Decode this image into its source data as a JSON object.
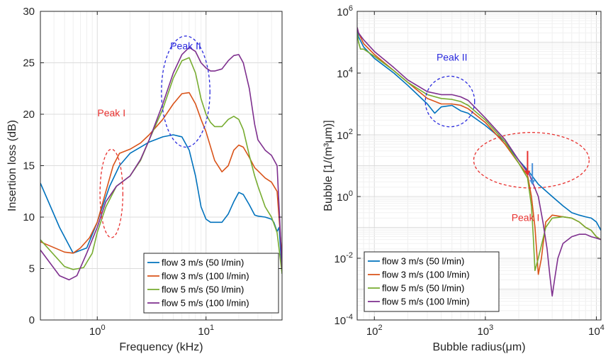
{
  "chart_data": [
    {
      "type": "line",
      "xscale": "log",
      "yscale": "linear",
      "xlabel": "Frequency (kHz)",
      "ylabel": "Insertion loss (dB)",
      "xlim": [
        0.3,
        50
      ],
      "ylim": [
        0,
        30
      ],
      "xticks": [
        {
          "v": 1,
          "mant": "10",
          "exp": "0"
        },
        {
          "v": 10,
          "mant": "10",
          "exp": "1"
        }
      ],
      "yticks": [
        0,
        5,
        10,
        15,
        20,
        25,
        30
      ],
      "grid": true,
      "legend_position": "bottom-right",
      "series": [
        {
          "name": "flow 3 m/s (50 l/min)",
          "color": "#0072BD",
          "x": [
            0.3,
            0.45,
            0.6,
            0.8,
            1.0,
            1.3,
            1.6,
            2.0,
            2.5,
            3,
            4,
            5,
            6,
            7,
            8,
            9,
            10,
            11,
            12,
            14,
            16,
            18,
            20,
            22,
            25,
            28,
            30,
            35,
            40,
            42,
            45,
            47,
            50
          ],
          "y": [
            13.3,
            9.0,
            6.5,
            7.0,
            9.5,
            13.0,
            15.0,
            16.2,
            16.8,
            17.3,
            17.8,
            18.0,
            17.8,
            16.5,
            14.0,
            11.0,
            9.8,
            9.5,
            9.5,
            9.5,
            10.3,
            11.5,
            12.4,
            12.2,
            11.2,
            10.2,
            10.1,
            10.0,
            9.8,
            9.5,
            8.6,
            9.0,
            4.5
          ]
        },
        {
          "name": "flow 3 m/s (100 l/min)",
          "color": "#D95319",
          "x": [
            0.3,
            0.5,
            0.6,
            0.7,
            0.85,
            1.0,
            1.2,
            1.4,
            1.6,
            2.0,
            2.5,
            3,
            4,
            5,
            6,
            7,
            8,
            9,
            10,
            12,
            14,
            16,
            18,
            20,
            22,
            25,
            28,
            30,
            35,
            40,
            45,
            50
          ],
          "y": [
            7.6,
            6.6,
            6.5,
            7.0,
            8.0,
            9.5,
            12.5,
            15.0,
            16.2,
            16.6,
            17.2,
            18.0,
            19.5,
            21.0,
            22.0,
            22.1,
            21.0,
            19.5,
            18.3,
            15.5,
            14.4,
            15.0,
            16.5,
            17.0,
            16.8,
            15.8,
            14.8,
            14.5,
            13.8,
            13.4,
            12.5,
            6.0
          ]
        },
        {
          "name": "flow 5 m/s (50 l/min)",
          "color": "#77AC30",
          "x": [
            0.3,
            0.5,
            0.6,
            0.75,
            0.9,
            1.0,
            1.2,
            1.5,
            2.0,
            2.5,
            3,
            4,
            5,
            6,
            7,
            8,
            9,
            10,
            11,
            12,
            14,
            16,
            18,
            20,
            22,
            25,
            28,
            30,
            35,
            40,
            45,
            50
          ],
          "y": [
            7.8,
            5.2,
            4.9,
            5.1,
            6.5,
            8.5,
            11.0,
            13.0,
            14.0,
            15.5,
            17.5,
            20.5,
            23.5,
            25.2,
            25.5,
            24.0,
            21.5,
            20.0,
            19.2,
            18.8,
            18.8,
            19.5,
            19.8,
            19.5,
            18.5,
            16.0,
            14.0,
            13.0,
            11.0,
            10.0,
            8.5,
            4.5
          ]
        },
        {
          "name": "flow 5 m/s (100 l/min)",
          "color": "#7E2F8E",
          "x": [
            0.3,
            0.45,
            0.55,
            0.65,
            0.8,
            1.0,
            1.2,
            1.5,
            2.0,
            2.5,
            3,
            4,
            5,
            6,
            7,
            8,
            9,
            10,
            11,
            12,
            14,
            16,
            18,
            20,
            22,
            25,
            28,
            30,
            35,
            40,
            45,
            50
          ],
          "y": [
            6.8,
            4.3,
            3.9,
            4.3,
            6.5,
            9.0,
            11.5,
            13.0,
            14.0,
            15.6,
            17.5,
            21.0,
            24.0,
            25.8,
            26.5,
            26.1,
            25.0,
            24.5,
            24.2,
            24.2,
            24.4,
            25.2,
            25.7,
            25.8,
            25.0,
            22.5,
            19.0,
            17.5,
            16.5,
            16.0,
            15.0,
            5.0
          ]
        }
      ],
      "annotations": [
        {
          "text": "Peak I",
          "color": "#e8312f",
          "x": 1.35,
          "y": 19.8,
          "ellipse": {
            "cx": 1.35,
            "cy": 12.3,
            "rx_dec": 0.105,
            "ry_val": 4.3
          }
        },
        {
          "text": "Peak II",
          "color": "#2b2bde",
          "x": 6.5,
          "y": 26.3,
          "ellipse": {
            "cx": 6.5,
            "cy": 22.2,
            "rx_dec": 0.223,
            "ry_val": 5.4
          }
        }
      ]
    },
    {
      "type": "line",
      "xscale": "log",
      "yscale": "log",
      "xlabel": "Bubble radius(μm)",
      "ylabel": "Bubble [1/(m³μm)]",
      "xlim": [
        70,
        11000
      ],
      "ylim": [
        0.0001,
        1000000
      ],
      "xticks": [
        {
          "v": 100,
          "mant": "10",
          "exp": "2"
        },
        {
          "v": 1000,
          "mant": "10",
          "exp": "3"
        },
        {
          "v": 10000,
          "mant": "10",
          "exp": "4"
        }
      ],
      "yticks": [
        {
          "v": 0.0001,
          "mant": "10",
          "exp": "-4"
        },
        {
          "v": 0.01,
          "mant": "10",
          "exp": "-2"
        },
        {
          "v": 1,
          "mant": "10",
          "exp": "0"
        },
        {
          "v": 100,
          "mant": "10",
          "exp": "2"
        },
        {
          "v": 10000,
          "mant": "10",
          "exp": "4"
        },
        {
          "v": 1000000,
          "mant": "10",
          "exp": "6"
        }
      ],
      "grid": true,
      "legend_position": "bottom-left",
      "series": [
        {
          "name": "flow 3 m/s (50 l/min)",
          "color": "#0072BD",
          "x": [
            70,
            72,
            80,
            100,
            150,
            200,
            300,
            350,
            400,
            500,
            600,
            700,
            1000,
            1500,
            2000,
            2500,
            3000,
            4000,
            5000,
            6000,
            7000,
            8000,
            9000,
            10000,
            11000
          ],
          "y": [
            300000,
            150000,
            70000,
            30000,
            10000,
            4000,
            1000,
            500,
            800,
            900,
            600,
            500,
            200,
            60,
            15,
            6,
            2.5,
            1.0,
            0.5,
            0.3,
            0.25,
            0.22,
            0.2,
            0.15,
            0.08
          ]
        },
        {
          "name": "flow 3 m/s (100 l/min)",
          "color": "#D95319",
          "x": [
            70,
            72,
            80,
            100,
            150,
            200,
            300,
            400,
            500,
            600,
            700,
            1000,
            1500,
            2000,
            2400,
            2600,
            2800,
            3000,
            3200,
            3500,
            4000,
            5000,
            6000,
            7000,
            8000,
            9000,
            10000,
            11000
          ],
          "y": [
            300000,
            200000,
            90000,
            40000,
            12000,
            5000,
            1500,
            1000,
            1000,
            900,
            700,
            250,
            50,
            12,
            5,
            1,
            0.1,
            0.003,
            0.01,
            0.15,
            0.25,
            0.22,
            0.2,
            0.15,
            0.1,
            0.08,
            0.05,
            0.04
          ]
        },
        {
          "name": "flow 5 m/s (50 l/min)",
          "color": "#77AC30",
          "x": [
            70,
            72,
            75,
            80,
            100,
            150,
            200,
            300,
            400,
            500,
            600,
            700,
            1000,
            1500,
            2000,
            2400,
            2600,
            2700,
            2800,
            3000,
            3500,
            4000,
            5000,
            6000,
            7000,
            8000,
            9000,
            10000,
            11000
          ],
          "y": [
            200000,
            100000,
            60000,
            60000,
            35000,
            12000,
            5000,
            2000,
            1500,
            1400,
            1200,
            900,
            300,
            60,
            12,
            4,
            0.5,
            0.05,
            0.004,
            0.01,
            0.1,
            0.2,
            0.22,
            0.2,
            0.15,
            0.1,
            0.08,
            0.05,
            0.04
          ]
        },
        {
          "name": "flow 5 m/s (100 l/min)",
          "color": "#7E2F8E",
          "x": [
            70,
            72,
            80,
            100,
            150,
            200,
            300,
            400,
            500,
            600,
            700,
            1000,
            1500,
            2000,
            2500,
            3000,
            3300,
            3600,
            3800,
            4000,
            4200,
            4500,
            5000,
            6000,
            7000,
            8000,
            9000,
            10000,
            11000
          ],
          "y": [
            300000,
            200000,
            120000,
            50000,
            15000,
            6000,
            2500,
            2000,
            2000,
            1700,
            1300,
            350,
            70,
            15,
            5,
            1,
            0.15,
            0.02,
            0.003,
            0.0006,
            0.002,
            0.01,
            0.03,
            0.05,
            0.06,
            0.06,
            0.05,
            0.045,
            0.04
          ]
        }
      ],
      "annotations": [
        {
          "text": "Peak II",
          "color": "#2b2bde",
          "x": 500,
          "y": 25000,
          "ellipse": {
            "cx": 480,
            "cy": 1200,
            "rx_dec": 0.222,
            "ry_dec": 0.82
          }
        },
        {
          "text": "Peak I",
          "color": "#e8312f",
          "x": 2300,
          "y": 0.16,
          "ellipse": {
            "cx": 2600,
            "cy": 15,
            "rx_dec": 0.52,
            "ry_dec": 0.9
          }
        }
      ],
      "arrows": [
        {
          "color": "#e8312f",
          "x": 2400,
          "from": 30,
          "to": 5
        },
        {
          "color": "#4a90d9",
          "x": 2650,
          "from": 12,
          "to": 2.5
        }
      ]
    }
  ]
}
